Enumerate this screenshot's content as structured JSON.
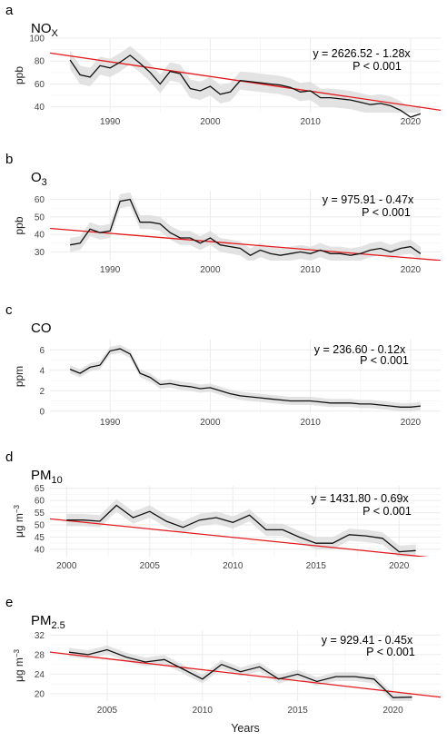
{
  "x_axis_label": "Years",
  "chart_data": [
    {
      "type": "line",
      "letter": "a",
      "title": "NO",
      "title_sub": "X",
      "ylabel": "ppb",
      "ylabel_sup": "",
      "equation": "y = 2626.52 - 1.28x",
      "pvalue": "P < 0.001",
      "xlim": [
        1984,
        2023
      ],
      "ylim": [
        35,
        100
      ],
      "xticks": [
        1990,
        2000,
        2010,
        2020
      ],
      "yticks": [
        40,
        60,
        80,
        100
      ],
      "trend": {
        "intercept": 2626.52,
        "slope": -1.28
      },
      "series": [
        {
          "x": [
            1986,
            1987,
            1988,
            1989,
            1990,
            1991,
            1992,
            1993,
            1994,
            1995,
            1996,
            1997,
            1998,
            1999,
            2000,
            2001,
            2002,
            2003,
            2004,
            2005,
            2006,
            2007,
            2008,
            2009,
            2010,
            2011,
            2012,
            2013,
            2014,
            2015,
            2016,
            2017,
            2018,
            2019,
            2020,
            2021
          ],
          "y": [
            81,
            68,
            66,
            76,
            74,
            79,
            85,
            78,
            70,
            60,
            71,
            69,
            56,
            54,
            58,
            51,
            53,
            63,
            62,
            61,
            60,
            59,
            57,
            53,
            54,
            48,
            48,
            47,
            46,
            44,
            42,
            43,
            41,
            37,
            31,
            34
          ]
        }
      ]
    },
    {
      "type": "line",
      "letter": "b",
      "title": "O",
      "title_sub": "3",
      "ylabel": "ppb",
      "ylabel_sup": "",
      "equation": "y = 975.91 - 0.47x",
      "pvalue": "P < 0.001",
      "xlim": [
        1984,
        2023
      ],
      "ylim": [
        25,
        65
      ],
      "xticks": [
        1990,
        2000,
        2010,
        2020
      ],
      "yticks": [
        30,
        40,
        50,
        60
      ],
      "trend": {
        "intercept": 975.91,
        "slope": -0.47
      },
      "series": [
        {
          "x": [
            1986,
            1987,
            1988,
            1989,
            1990,
            1991,
            1992,
            1993,
            1994,
            1995,
            1996,
            1997,
            1998,
            1999,
            2000,
            2001,
            2002,
            2003,
            2004,
            2005,
            2006,
            2007,
            2008,
            2009,
            2010,
            2011,
            2012,
            2013,
            2014,
            2015,
            2016,
            2017,
            2018,
            2019,
            2020,
            2021
          ],
          "y": [
            34,
            35,
            43,
            41,
            42,
            59,
            60,
            47,
            47,
            46,
            41,
            38,
            38,
            35,
            38,
            34,
            33,
            32,
            28,
            31,
            29,
            28,
            29,
            30,
            29,
            31,
            29,
            29,
            28,
            29,
            31,
            32,
            30,
            32,
            33,
            29
          ]
        }
      ]
    },
    {
      "type": "line",
      "letter": "c",
      "title": "CO",
      "title_sub": "",
      "ylabel": "ppm",
      "ylabel_sup": "",
      "equation": "y = 236.60 - 0.12x",
      "pvalue": "P < 0.001",
      "xlim": [
        1984,
        2023
      ],
      "ylim": [
        -0.2,
        7
      ],
      "xticks": [
        1990,
        2000,
        2010,
        2020
      ],
      "yticks": [
        0,
        2,
        4,
        6
      ],
      "trend": {
        "intercept": 236.6,
        "slope": -0.12
      },
      "series": [
        {
          "x": [
            1986,
            1987,
            1988,
            1989,
            1990,
            1991,
            1992,
            1993,
            1994,
            1995,
            1996,
            1997,
            1998,
            1999,
            2000,
            2001,
            2002,
            2003,
            2004,
            2005,
            2006,
            2007,
            2008,
            2009,
            2010,
            2011,
            2012,
            2013,
            2014,
            2015,
            2016,
            2017,
            2018,
            2019,
            2020,
            2021
          ],
          "y": [
            4.1,
            3.7,
            4.3,
            4.5,
            5.9,
            6.1,
            5.6,
            3.7,
            3.3,
            2.6,
            2.7,
            2.5,
            2.4,
            2.2,
            2.3,
            2.0,
            1.7,
            1.5,
            1.4,
            1.3,
            1.2,
            1.1,
            1.0,
            1.0,
            1.0,
            0.9,
            0.8,
            0.8,
            0.8,
            0.7,
            0.7,
            0.6,
            0.5,
            0.4,
            0.4,
            0.5
          ]
        }
      ]
    },
    {
      "type": "line",
      "letter": "d",
      "title": "PM",
      "title_sub": "10",
      "ylabel": "μg m",
      "ylabel_sup": "−3",
      "equation": "y = 1431.80 - 0.69x",
      "pvalue": "P < 0.001",
      "xlim": [
        1999,
        2022.5
      ],
      "ylim": [
        37,
        66
      ],
      "xticks": [
        2000,
        2005,
        2010,
        2015,
        2020
      ],
      "yticks": [
        40,
        45,
        50,
        55,
        60,
        65
      ],
      "trend": {
        "intercept": 1431.8,
        "slope": -0.69
      },
      "series": [
        {
          "x": [
            2000,
            2001,
            2002,
            2003,
            2004,
            2005,
            2006,
            2007,
            2008,
            2009,
            2010,
            2011,
            2012,
            2013,
            2014,
            2015,
            2016,
            2017,
            2018,
            2019,
            2020,
            2021
          ],
          "y": [
            52,
            52,
            51.5,
            58,
            53,
            55.5,
            51.5,
            49,
            52,
            53,
            51,
            54,
            48,
            48,
            45,
            42.5,
            42.5,
            46,
            45.5,
            44.5,
            39,
            39.5
          ]
        }
      ]
    },
    {
      "type": "line",
      "letter": "e",
      "title": "PM",
      "title_sub": "2.5",
      "ylabel": "μg m",
      "ylabel_sup": "−3",
      "equation": "y = 929.41 - 0.45x",
      "pvalue": "P < 0.001",
      "xlim": [
        2002,
        2022.5
      ],
      "ylim": [
        18.5,
        33
      ],
      "xticks": [
        2005,
        2010,
        2015,
        2020
      ],
      "yticks": [
        20,
        24,
        28,
        32
      ],
      "trend": {
        "intercept": 929.41,
        "slope": -0.45
      },
      "series": [
        {
          "x": [
            2003,
            2004,
            2005,
            2006,
            2007,
            2008,
            2009,
            2010,
            2011,
            2012,
            2013,
            2014,
            2015,
            2016,
            2017,
            2018,
            2019,
            2020,
            2021
          ],
          "y": [
            28.5,
            28,
            29,
            27.5,
            26.5,
            27,
            25,
            23,
            26,
            24.5,
            25.5,
            23,
            24,
            22.5,
            23.5,
            23.5,
            23,
            19.2,
            19.3
          ]
        }
      ]
    }
  ]
}
